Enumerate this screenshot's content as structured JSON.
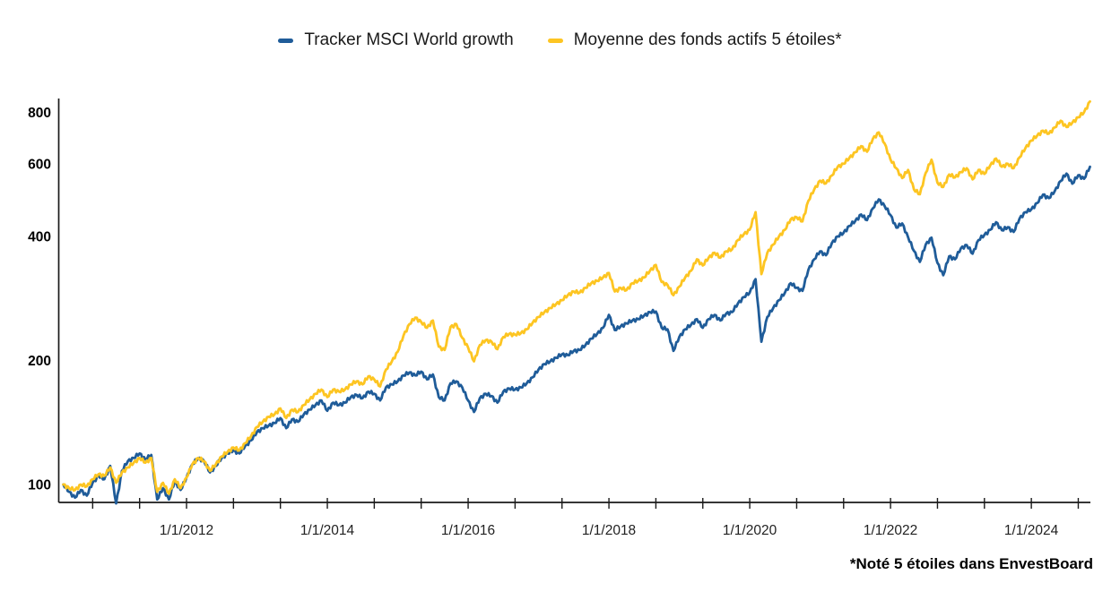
{
  "legend": [
    {
      "id": "tracker",
      "label": "Tracker MSCI World growth",
      "color": "#1F5C99"
    },
    {
      "id": "funds",
      "label": "Moyenne des fonds actifs 5 étoiles*",
      "color": "#FDC522"
    }
  ],
  "footnote": "*Noté 5 étoiles dans EnvestBoard",
  "colors": {
    "tracker_blue": "#1F5C99",
    "funds_yellow": "#FDC522",
    "axis": "#1a1a1a",
    "tick_label": "#222222"
  },
  "chart_data": {
    "type": "line",
    "title": "",
    "xlabel": "",
    "ylabel": "",
    "y_scale": "log",
    "grid": false,
    "legend_position": "top-center",
    "ylim": [
      90.5,
      864
    ],
    "xlim": [
      2010.185,
      2024.84
    ],
    "y_ticks": [
      100,
      200,
      400,
      600,
      800
    ],
    "x_axis": {
      "minor_tick_start": 2010.667,
      "minor_tick_step": 0.6667,
      "labeled_ticks": [
        {
          "year": 2012,
          "label": "1/1/2012"
        },
        {
          "year": 2014,
          "label": "1/1/2014"
        },
        {
          "year": 2016,
          "label": "1/1/2016"
        },
        {
          "year": 2018,
          "label": "1/1/2018"
        },
        {
          "year": 2020,
          "label": "1/1/2020"
        },
        {
          "year": 2022,
          "label": "1/1/2022"
        },
        {
          "year": 2024,
          "label": "1/1/2024"
        }
      ]
    },
    "x_start": 2010.25,
    "x_step_years": 0.083333,
    "series": [
      {
        "id": "tracker",
        "name": "Tracker MSCI World growth",
        "color": "#1F5C99",
        "base_value": 100,
        "values": [
          100,
          96,
          93,
          97,
          94,
          101,
          105,
          103,
          111,
          90,
          108,
          114,
          116,
          119,
          115,
          118,
          92,
          98,
          92,
          102,
          97,
          104,
          112,
          116,
          114,
          107,
          111,
          116,
          119,
          121,
          119,
          124,
          128,
          134,
          137,
          139,
          141,
          145,
          137,
          144,
          142,
          148,
          152,
          156,
          160,
          151,
          158,
          156,
          158,
          163,
          165,
          162,
          168,
          166,
          160,
          172,
          175,
          178,
          184,
          187,
          184,
          188,
          180,
          185,
          163,
          160,
          176,
          178,
          172,
          160,
          150,
          162,
          166,
          164,
          158,
          168,
          171,
          170,
          172,
          176,
          182,
          190,
          196,
          199,
          203,
          207,
          206,
          211,
          212,
          218,
          226,
          232,
          240,
          258,
          237,
          242,
          246,
          250,
          252,
          257,
          262,
          263,
          240,
          238,
          211,
          228,
          238,
          244,
          252,
          240,
          252,
          258,
          250,
          260,
          262,
          275,
          285,
          292,
          315,
          222,
          255,
          268,
          280,
          292,
          308,
          300,
          295,
          332,
          352,
          368,
          360,
          385,
          400,
          408,
          424,
          436,
          452,
          438,
          468,
          492,
          474,
          451,
          420,
          430,
          398,
          369,
          347,
          382,
          397,
          345,
          322,
          358,
          352,
          374,
          381,
          363,
          392,
          403,
          415,
          433,
          414,
          421,
          410,
          442,
          458,
          465,
          482,
          505,
          495,
          515,
          545,
          568,
          537,
          563,
          552,
          590
        ]
      },
      {
        "id": "funds",
        "name": "Moyenne des fonds actifs 5 étoiles*",
        "color": "#FDC522",
        "base_value": 100,
        "values": [
          100,
          98,
          97,
          100,
          99,
          103,
          106,
          105,
          110,
          101,
          107,
          110,
          113,
          116,
          113,
          116,
          96,
          101,
          95,
          103,
          98,
          104,
          112,
          116,
          114,
          108,
          112,
          117,
          120,
          123,
          121,
          126,
          131,
          138,
          142,
          146,
          148,
          153,
          145,
          152,
          150,
          156,
          161,
          166,
          170,
          163,
          170,
          168,
          170,
          175,
          178,
          175,
          183,
          180,
          173,
          190,
          199,
          210,
          230,
          245,
          254,
          248,
          240,
          250,
          216,
          212,
          241,
          245,
          227,
          215,
          199,
          218,
          224,
          222,
          213,
          228,
          232,
          231,
          233,
          238,
          247,
          255,
          262,
          268,
          274,
          280,
          288,
          294,
          292,
          300,
          308,
          312,
          318,
          326,
          294,
          300,
          296,
          308,
          312,
          318,
          330,
          341,
          310,
          305,
          288,
          302,
          318,
          330,
          352,
          340,
          355,
          365,
          355,
          368,
          372,
          392,
          405,
          415,
          458,
          324,
          365,
          382,
          400,
          415,
          440,
          445,
          435,
          488,
          520,
          546,
          538,
          562,
          590,
          600,
          620,
          640,
          662,
          642,
          690,
          715,
          672,
          615,
          585,
          554,
          580,
          520,
          506,
          570,
          614,
          540,
          527,
          565,
          556,
          573,
          585,
          550,
          580,
          567,
          595,
          618,
          590,
          600,
          585,
          622,
          655,
          683,
          702,
          722,
          710,
          735,
          763,
          737,
          755,
          778,
          800,
          850
        ]
      }
    ]
  }
}
